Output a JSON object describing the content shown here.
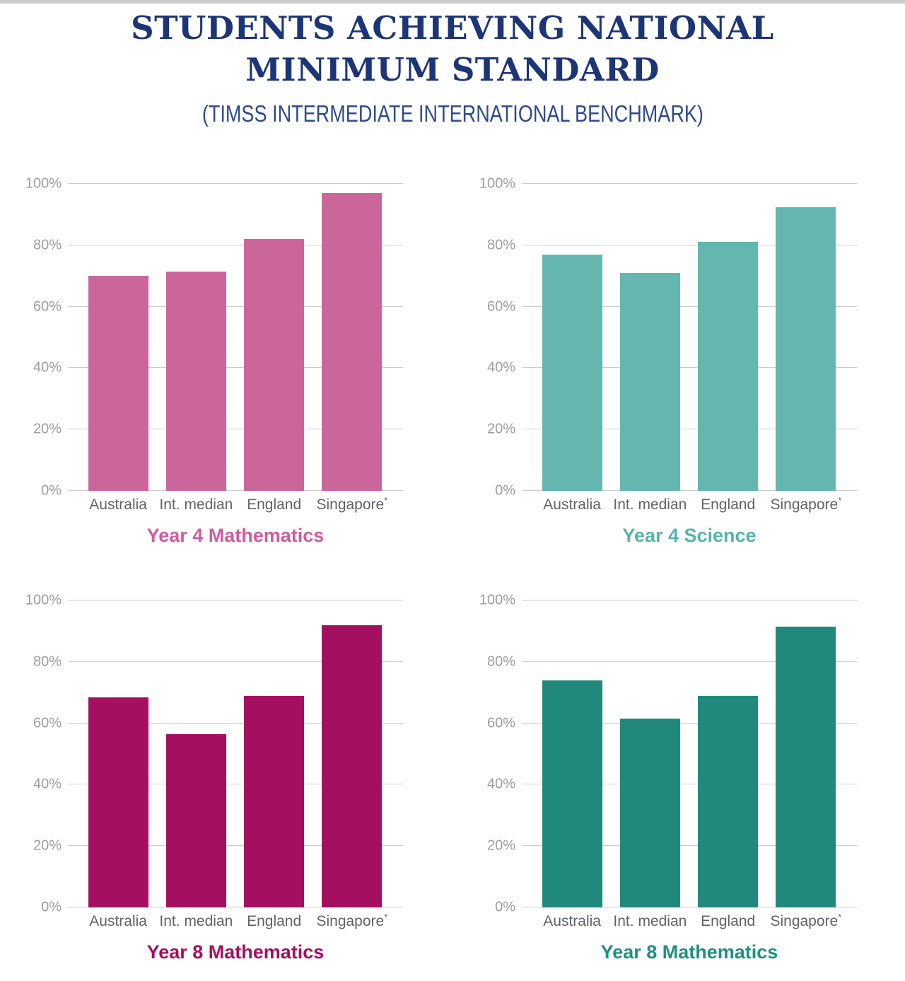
{
  "page": {
    "title_line1": "STUDENTS ACHIEVING NATIONAL",
    "title_line2": "MINIMUM STANDARD",
    "subtitle": "(TIMSS INTERMEDIATE INTERNATIONAL BENCHMARK)"
  },
  "colors": {
    "title_navy": "#1c3577",
    "subtitle_blue": "#2e4a8f",
    "gridline": "#cccccc",
    "ytick_label": "#9e9e9e",
    "xcategory_label": "#5f6368",
    "top_strip": "#cbcbcb"
  },
  "axis": {
    "yticks_percent": [
      0,
      20,
      40,
      60,
      80,
      100
    ],
    "ytick_labels": [
      "0%",
      "20%",
      "40%",
      "60%",
      "80%",
      "100%"
    ]
  },
  "chart_data": [
    {
      "type": "bar",
      "caption": "Year 4 Mathematics",
      "categories": [
        "Australia",
        "Int. median",
        "England",
        "Singapore*"
      ],
      "values": [
        70,
        71.5,
        82,
        97
      ],
      "ylim": [
        0,
        100
      ],
      "ytick_labels": [
        "0%",
        "20%",
        "40%",
        "60%",
        "80%",
        "100%"
      ],
      "grid": "on",
      "legend": "none",
      "bar_color": "#cb669b",
      "caption_color": "#d05ca0"
    },
    {
      "type": "bar",
      "caption": "Year 4 Science",
      "categories": [
        "Australia",
        "Int. median",
        "England",
        "Singapore*"
      ],
      "values": [
        77,
        71,
        81,
        92.5
      ],
      "ylim": [
        0,
        100
      ],
      "ytick_labels": [
        "0%",
        "20%",
        "40%",
        "60%",
        "80%",
        "100%"
      ],
      "grid": "on",
      "legend": "none",
      "bar_color": "#63b7ae",
      "caption_color": "#57b4aa"
    },
    {
      "type": "bar",
      "caption": "Year 8 Mathematics",
      "categories": [
        "Australia",
        "Int. median",
        "England",
        "Singapore*"
      ],
      "values": [
        68.5,
        56.5,
        69,
        92
      ],
      "ylim": [
        0,
        100
      ],
      "ytick_labels": [
        "0%",
        "20%",
        "40%",
        "60%",
        "80%",
        "100%"
      ],
      "grid": "on",
      "legend": "none",
      "bar_color": "#a50f60",
      "caption_color": "#a50f60"
    },
    {
      "type": "bar",
      "caption": "Year 8 Mathematics",
      "categories": [
        "Australia",
        "Int. median",
        "England",
        "Singapore*"
      ],
      "values": [
        74,
        61.5,
        69,
        91.5
      ],
      "ylim": [
        0,
        100
      ],
      "ytick_labels": [
        "0%",
        "20%",
        "40%",
        "60%",
        "80%",
        "100%"
      ],
      "grid": "on",
      "legend": "none",
      "bar_color": "#21897c",
      "caption_color": "#1f9180"
    }
  ]
}
